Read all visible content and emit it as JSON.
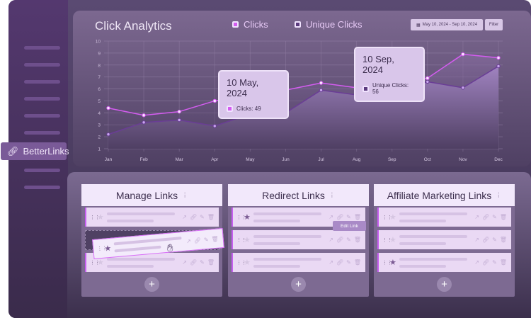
{
  "sidebar": {
    "brand": "BetterLinks",
    "icon": "link-icon"
  },
  "header": {
    "title": "Click Analytics",
    "legend": [
      {
        "label": "Clicks",
        "color": "#d45cf0"
      },
      {
        "label": "Unique Clicks",
        "color": "#5b3a7e"
      }
    ],
    "date_range": "May 10, 2024 - Sep 10, 2024",
    "filter_label": "Filter"
  },
  "tooltips": [
    {
      "date": "10 May, 2024",
      "label": "Clicks: 49"
    },
    {
      "date": "10 Sep, 2024",
      "label": "Unique Clicks: 56"
    }
  ],
  "chart_data": {
    "type": "area",
    "title": "Click Analytics",
    "categories": [
      "Jan",
      "Feb",
      "Mar",
      "Apr",
      "May",
      "Jun",
      "Jul",
      "Aug",
      "Sep",
      "Oct",
      "Nov",
      "Dec"
    ],
    "yticks": [
      "1",
      "2",
      "3",
      "4",
      "5",
      "6",
      "7",
      "8",
      "9",
      "10"
    ],
    "ylim": [
      1,
      10
    ],
    "grid": true,
    "legend": "top-center",
    "series": [
      {
        "name": "Clicks",
        "color": "#d45cf0",
        "values": [
          4.4,
          3.8,
          4.1,
          5.0,
          5.5,
          5.9,
          6.5,
          6.1,
          6.5,
          6.9,
          8.9,
          8.6
        ]
      },
      {
        "name": "Unique Clicks",
        "color": "#6a3d96",
        "values": [
          2.2,
          3.2,
          3.4,
          2.9,
          3.9,
          4.0,
          5.9,
          5.5,
          5.8,
          6.6,
          6.1,
          7.9
        ]
      }
    ]
  },
  "board": {
    "columns": [
      {
        "title": "Manage Links",
        "cards": [
          {
            "starred": false
          },
          {
            "starred": false
          }
        ],
        "dragging": {
          "starred": true
        }
      },
      {
        "title": "Redirect Links",
        "cards": [
          {
            "starred": true
          },
          {
            "starred": false
          },
          {
            "starred": false
          }
        ]
      },
      {
        "title": "Affiliate Marketing Links",
        "cards": [
          {
            "starred": false
          },
          {
            "starred": false
          },
          {
            "starred": true
          }
        ]
      }
    ],
    "edit_tooltip": "Edit Link",
    "add_label": "+"
  }
}
